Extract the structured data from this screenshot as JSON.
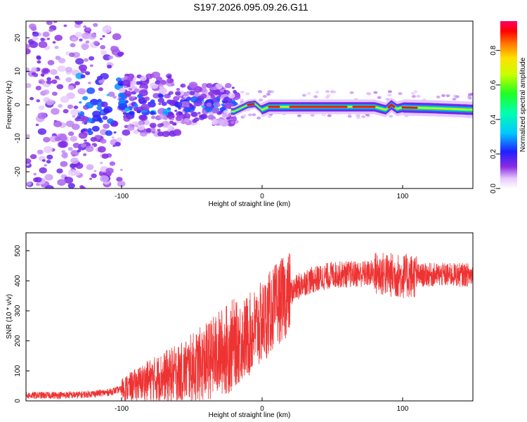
{
  "title": "S197.2026.095.09.26.G11",
  "chart_data": [
    {
      "type": "heatmap",
      "xlabel": "Height of straight line (km)",
      "ylabel": "Frequency (Hz)",
      "xlim": [
        -168,
        150
      ],
      "ylim": [
        -25,
        25
      ],
      "xticks": [
        -100,
        0,
        100
      ],
      "yticks": [
        -20,
        -10,
        0,
        10,
        20
      ],
      "colorbar": {
        "label": "Normalized spectral amplitude",
        "range": [
          0.0,
          0.97
        ],
        "ticks": [
          0.0,
          0.2,
          0.4,
          0.6,
          0.8
        ]
      },
      "ridge": {
        "x": [
          -20,
          -15,
          -10,
          -5,
          0,
          5,
          10,
          20,
          40,
          60,
          80,
          88,
          92,
          96,
          100,
          120,
          150
        ],
        "y": [
          -2.0,
          -1.0,
          0.0,
          0.3,
          -1.5,
          -0.6,
          -0.6,
          -0.6,
          -0.6,
          -0.6,
          -0.6,
          -1.5,
          0.0,
          -1.2,
          -0.8,
          -1.0,
          -1.5
        ]
      }
    },
    {
      "type": "line",
      "xlabel": "Height of straight line (km)",
      "ylabel": "SNR (10 * v/v)",
      "xlim": [
        -168,
        150
      ],
      "ylim": [
        0,
        560
      ],
      "xticks": [
        -100,
        0,
        100
      ],
      "yticks": [
        0,
        100,
        200,
        300,
        400,
        500
      ],
      "color": "#ee3333",
      "trend": {
        "x": [
          -168,
          -130,
          -110,
          -95,
          -80,
          -60,
          -40,
          -30,
          -20,
          -10,
          0,
          10,
          20,
          30,
          50,
          80,
          100,
          120,
          150
        ],
        "y": [
          18,
          20,
          28,
          45,
          70,
          90,
          130,
          160,
          185,
          215,
          260,
          320,
          360,
          395,
          420,
          425,
          415,
          420,
          420
        ]
      }
    }
  ]
}
